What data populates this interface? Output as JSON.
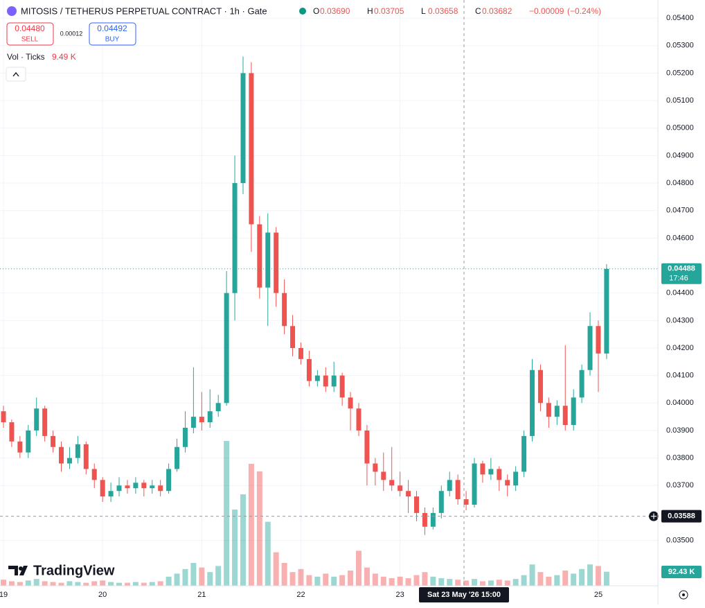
{
  "chart_data": {
    "type": "candlestick",
    "title": "MITOSIS / TETHERUS PERPETUAL CONTRACT · 1h · Gate",
    "ohlc_legend": [
      {
        "key": "O",
        "value": 0.0369,
        "label": "0.03690"
      },
      {
        "key": "H",
        "value": 0.03705,
        "label": "0.03705"
      },
      {
        "key": "L",
        "value": 0.03658,
        "label": "0.03658"
      },
      {
        "key": "C",
        "value": 0.03682,
        "label": "0.03682"
      }
    ],
    "change": {
      "value": -9e-05,
      "label": "−0.00009"
    },
    "change_pct": {
      "value": -0.24,
      "label": "(−0.24%)"
    },
    "sell": {
      "price": {
        "value": 0.0448,
        "label": "0.04480"
      },
      "text": "SELL"
    },
    "spread": {
      "value": 0.00012,
      "label": "0.00012"
    },
    "buy": {
      "price": {
        "value": 0.04492,
        "label": "0.04492"
      },
      "text": "BUY"
    },
    "volume_indicator": {
      "name": "Vol · Ticks",
      "value": 9.49,
      "label": "9.49 K"
    },
    "logo": "TradingView",
    "up_color": "#26a69a",
    "down_color": "#ef5350",
    "categories": [
      "19",
      null,
      null,
      null,
      null,
      null,
      null,
      null,
      null,
      null,
      null,
      null,
      "20",
      null,
      null,
      null,
      null,
      null,
      null,
      null,
      null,
      null,
      null,
      null,
      "21",
      null,
      null,
      null,
      null,
      null,
      null,
      null,
      null,
      null,
      null,
      null,
      "22",
      null,
      null,
      null,
      null,
      null,
      null,
      null,
      null,
      null,
      null,
      null,
      "23",
      null,
      null,
      null,
      null,
      null,
      null,
      null,
      null,
      null,
      null,
      null,
      null,
      null,
      null,
      null,
      null,
      null,
      null,
      null,
      null,
      null,
      null,
      null,
      "25",
      null
    ],
    "open": [
      0.0397,
      0.0393,
      0.0386,
      0.0382,
      0.039,
      0.0398,
      0.0388,
      0.0384,
      0.0378,
      0.038,
      0.0385,
      0.0376,
      0.0372,
      0.0366,
      0.0368,
      0.037,
      0.0369,
      0.0371,
      0.0369,
      0.037,
      0.0368,
      0.0376,
      0.0384,
      0.0391,
      0.0395,
      0.0393,
      0.0397,
      0.04,
      0.044,
      0.048,
      0.052,
      0.0465,
      0.0442,
      0.0462,
      0.044,
      0.0428,
      0.042,
      0.0416,
      0.0408,
      0.041,
      0.0406,
      0.041,
      0.0402,
      0.0398,
      0.039,
      0.0378,
      0.0375,
      0.0372,
      0.037,
      0.0368,
      0.0366,
      0.036,
      0.0355,
      0.036,
      0.0368,
      0.0372,
      0.0365,
      0.0363,
      0.0378,
      0.0374,
      0.0376,
      0.0372,
      0.037,
      0.0375,
      0.0388,
      0.0412,
      0.04,
      0.0395,
      0.0399,
      0.0392,
      0.0402,
      0.0412,
      0.0428,
      0.0418
    ],
    "high": [
      0.0399,
      0.0394,
      0.0388,
      0.0392,
      0.0402,
      0.0399,
      0.039,
      0.0386,
      0.0384,
      0.0388,
      0.0386,
      0.0378,
      0.0373,
      0.0371,
      0.0373,
      0.0372,
      0.0373,
      0.0372,
      0.0372,
      0.0372,
      0.0378,
      0.0387,
      0.0397,
      0.0413,
      0.0404,
      0.0405,
      0.0403,
      0.0448,
      0.049,
      0.0526,
      0.0524,
      0.0468,
      0.0469,
      0.0464,
      0.0445,
      0.0432,
      0.0422,
      0.0419,
      0.0412,
      0.0413,
      0.0415,
      0.0411,
      0.0404,
      0.04,
      0.0392,
      0.038,
      0.0382,
      0.0384,
      0.0375,
      0.0372,
      0.0368,
      0.0362,
      0.0362,
      0.037,
      0.0375,
      0.0374,
      0.0368,
      0.038,
      0.0379,
      0.038,
      0.0377,
      0.0374,
      0.0377,
      0.039,
      0.0416,
      0.0414,
      0.0402,
      0.0401,
      0.0421,
      0.0405,
      0.0414,
      0.0433,
      0.043,
      0.04505
    ],
    "low": [
      0.0391,
      0.0384,
      0.038,
      0.038,
      0.0388,
      0.0386,
      0.0382,
      0.0375,
      0.0376,
      0.0378,
      0.0374,
      0.0369,
      0.0364,
      0.0364,
      0.0366,
      0.0367,
      0.0367,
      0.0366,
      0.0367,
      0.0366,
      0.0367,
      0.0375,
      0.0382,
      0.0389,
      0.039,
      0.0391,
      0.0395,
      0.0399,
      0.043,
      0.0476,
      0.0455,
      0.0438,
      0.0428,
      0.0435,
      0.0425,
      0.0417,
      0.0414,
      0.0406,
      0.0406,
      0.0404,
      0.0404,
      0.0399,
      0.039,
      0.0388,
      0.037,
      0.037,
      0.0368,
      0.0368,
      0.0366,
      0.036,
      0.0357,
      0.0352,
      0.0354,
      0.0358,
      0.0366,
      0.0363,
      0.0361,
      0.0362,
      0.0371,
      0.0372,
      0.0368,
      0.0366,
      0.0368,
      0.0373,
      0.0386,
      0.0397,
      0.0391,
      0.0392,
      0.039,
      0.039,
      0.04,
      0.041,
      0.0404,
      0.0416
    ],
    "close": [
      0.0393,
      0.0386,
      0.0382,
      0.039,
      0.0398,
      0.0388,
      0.0384,
      0.0378,
      0.038,
      0.0385,
      0.0376,
      0.0372,
      0.0366,
      0.0368,
      0.037,
      0.0369,
      0.0371,
      0.0369,
      0.037,
      0.0368,
      0.0376,
      0.0384,
      0.0391,
      0.0395,
      0.0393,
      0.0397,
      0.04,
      0.044,
      0.048,
      0.052,
      0.0465,
      0.0442,
      0.0462,
      0.044,
      0.0428,
      0.042,
      0.0416,
      0.0408,
      0.041,
      0.0406,
      0.041,
      0.0402,
      0.0398,
      0.039,
      0.0378,
      0.0375,
      0.0372,
      0.037,
      0.0368,
      0.0366,
      0.036,
      0.0355,
      0.036,
      0.0368,
      0.0372,
      0.0365,
      0.0363,
      0.0378,
      0.0374,
      0.0376,
      0.0372,
      0.037,
      0.0375,
      0.0388,
      0.0412,
      0.04,
      0.0395,
      0.0399,
      0.0392,
      0.0402,
      0.0412,
      0.0428,
      0.0418,
      0.04488
    ],
    "volume": [
      40,
      30,
      25,
      35,
      45,
      30,
      25,
      20,
      30,
      25,
      20,
      30,
      35,
      25,
      20,
      20,
      25,
      20,
      25,
      30,
      60,
      80,
      110,
      150,
      120,
      90,
      130,
      950,
      500,
      600,
      800,
      750,
      420,
      220,
      150,
      90,
      110,
      70,
      60,
      80,
      60,
      70,
      100,
      230,
      120,
      80,
      60,
      50,
      60,
      50,
      70,
      90,
      60,
      50,
      45,
      40,
      35,
      45,
      30,
      35,
      40,
      35,
      45,
      70,
      140,
      90,
      60,
      70,
      100,
      80,
      110,
      140,
      130,
      92.43
    ],
    "volume_last_label": "92.43 K",
    "current_price": {
      "value": 0.04488,
      "label": "0.04488"
    },
    "countdown": "17:46",
    "crosshair_price": {
      "value": 0.03588,
      "label": "0.03588"
    },
    "crosshair_time": "Sat 23 May '26 15:00",
    "ylim": [
      0.03335,
      0.05466
    ],
    "yticks": [
      {
        "value": 0.035,
        "label": "0.03500"
      },
      {
        "value": 0.037,
        "label": "0.03700"
      },
      {
        "value": 0.038,
        "label": "0.03800"
      },
      {
        "value": 0.039,
        "label": "0.03900"
      },
      {
        "value": 0.04,
        "label": "0.04000"
      },
      {
        "value": 0.041,
        "label": "0.04100"
      },
      {
        "value": 0.042,
        "label": "0.04200"
      },
      {
        "value": 0.043,
        "label": "0.04300"
      },
      {
        "value": 0.044,
        "label": "0.04400"
      },
      {
        "value": 0.046,
        "label": "0.04600"
      },
      {
        "value": 0.047,
        "label": "0.04700"
      },
      {
        "value": 0.048,
        "label": "0.04800"
      },
      {
        "value": 0.049,
        "label": "0.04900"
      },
      {
        "value": 0.05,
        "label": "0.05000"
      },
      {
        "value": 0.051,
        "label": "0.05100"
      },
      {
        "value": 0.052,
        "label": "0.05200"
      },
      {
        "value": 0.053,
        "label": "0.05300"
      },
      {
        "value": 0.054,
        "label": "0.05400"
      }
    ],
    "grid": true
  }
}
